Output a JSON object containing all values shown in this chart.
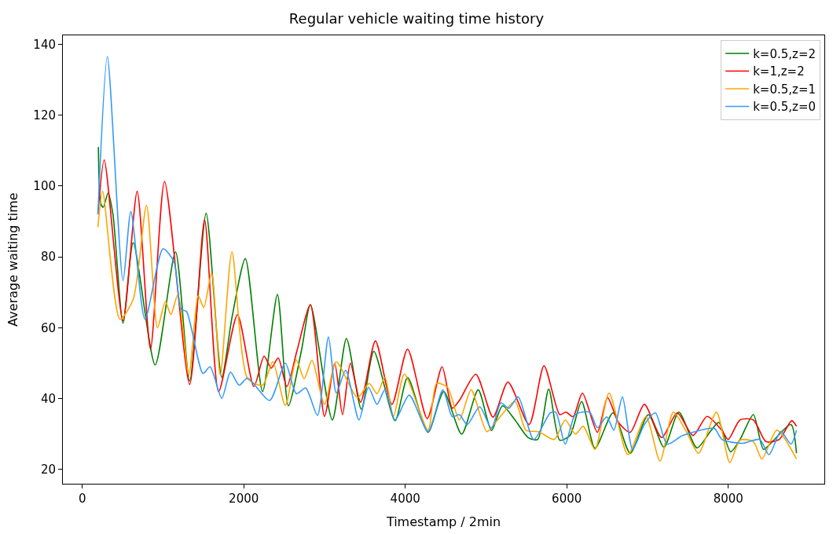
{
  "chart_data": {
    "type": "line",
    "title": "Regular vehicle waiting time history",
    "xlabel": "Timestamp / 2min",
    "ylabel": "Average waiting time",
    "xlim": [
      -240,
      9190
    ],
    "ylim": [
      16,
      142.5
    ],
    "xticks": [
      0,
      2000,
      4000,
      6000,
      8000
    ],
    "yticks": [
      20,
      40,
      60,
      80,
      100,
      120,
      140
    ],
    "legend": "top right",
    "line_style": "solid",
    "series": [
      {
        "name": "k=0.5,z=2",
        "color": "#008000",
        "x": [
          200,
          230,
          260,
          320,
          380,
          505,
          631,
          903,
          1155,
          1330,
          1534,
          1728,
          1855,
          2020,
          2233,
          2417,
          2553,
          2718,
          2825,
          3097,
          3272,
          3456,
          3611,
          3874,
          4029,
          4282,
          4476,
          4699,
          4903,
          5068,
          5204,
          5359,
          5524,
          5640,
          5777,
          5913,
          6039,
          6184,
          6350,
          6573,
          6786,
          7010,
          7204,
          7388,
          7612,
          7786,
          7883,
          8029,
          8146,
          8311,
          8437,
          8563,
          8777,
          8845
        ],
        "values": [
          111,
          95,
          94,
          98,
          92,
          61.3,
          84,
          49.5,
          81.4,
          45,
          92.3,
          46,
          63,
          79.5,
          42,
          69.4,
          38,
          54,
          66.5,
          34,
          57,
          37,
          53.4,
          33.8,
          46,
          30.5,
          42,
          30,
          42.5,
          31,
          38,
          34,
          29,
          28.5,
          42.7,
          28.3,
          29.6,
          39.2,
          26,
          36,
          24.6,
          35.5,
          26.3,
          36.2,
          26.1,
          31,
          33.3,
          25,
          28.5,
          35.5,
          25.7,
          28.3,
          32.7,
          24.6
        ]
      },
      {
        "name": "k=1,z=2",
        "color": "#ff0000",
        "x": [
          194,
          272,
          505,
          680,
          845,
          1019,
          1330,
          1515,
          1689,
          1922,
          2126,
          2252,
          2340,
          2427,
          2534,
          2660,
          2825,
          3000,
          3126,
          3223,
          3320,
          3447,
          3631,
          3835,
          4029,
          4272,
          4456,
          4583,
          4670,
          4874,
          5087,
          5272,
          5534,
          5718,
          5913,
          5990,
          6078,
          6194,
          6379,
          6505,
          6641,
          6786,
          6961,
          7175,
          7369,
          7563,
          7738,
          7922,
          8000,
          8146,
          8311,
          8466,
          8631,
          8786,
          8845
        ],
        "values": [
          92,
          107.4,
          62,
          98.5,
          54,
          101.3,
          44,
          90.4,
          42,
          63.7,
          43.4,
          52,
          48.6,
          51.5,
          43.4,
          53.6,
          66.5,
          35,
          50,
          35.5,
          50,
          39,
          56.3,
          38.4,
          54,
          34.4,
          49,
          37.3,
          39.5,
          46.9,
          34.8,
          44.7,
          32.7,
          49.3,
          35.5,
          36.2,
          34.9,
          41.6,
          30.5,
          40.3,
          33.3,
          30.5,
          38.4,
          29,
          36,
          29.6,
          35,
          31,
          28.5,
          34,
          34,
          27.9,
          28.5,
          33.8,
          32.2
        ]
      },
      {
        "name": "k=0.5,z=1",
        "color": "#ffa500",
        "x": [
          194,
          252,
          466,
          631,
          796,
          932,
          1029,
          1097,
          1184,
          1320,
          1437,
          1505,
          1602,
          1709,
          1854,
          2049,
          2233,
          2359,
          2515,
          2650,
          2748,
          2845,
          3000,
          3146,
          3408,
          3553,
          3650,
          3748,
          3854,
          3990,
          4282,
          4388,
          4524,
          4670,
          4816,
          5010,
          5136,
          5359,
          5495,
          5650,
          5845,
          5981,
          6107,
          6204,
          6350,
          6524,
          6757,
          6981,
          7155,
          7320,
          7485,
          7631,
          7854,
          8019,
          8146,
          8311,
          8417,
          8602,
          8845
        ],
        "values": [
          88.4,
          98.5,
          62.4,
          68,
          94.5,
          60,
          67.4,
          63.7,
          69.4,
          46.7,
          69,
          65.7,
          75.5,
          46.7,
          81.4,
          45.6,
          43.8,
          50.4,
          38.1,
          51,
          45.6,
          50.8,
          38.4,
          50.4,
          40.3,
          44.3,
          41.4,
          46,
          35,
          46.9,
          31.1,
          44.3,
          43.2,
          34,
          42.5,
          30.7,
          33.8,
          39.2,
          31.1,
          30.7,
          28.5,
          34,
          30,
          32.2,
          25.7,
          41.6,
          24.2,
          34.9,
          22.4,
          36.2,
          30.5,
          24.6,
          36.2,
          22,
          28.3,
          27.9,
          23,
          31.1,
          23
        ]
      },
      {
        "name": "k=0.5,z=0",
        "color": "#3399ff",
        "x": [
          194,
          311,
          505,
          602,
          777,
          1000,
          1136,
          1223,
          1291,
          1495,
          1583,
          1728,
          1835,
          1942,
          2049,
          2320,
          2515,
          2650,
          2767,
          2913,
          3049,
          3146,
          3262,
          3427,
          3544,
          3650,
          3748,
          3874,
          4049,
          4282,
          4466,
          4583,
          4670,
          4767,
          4922,
          5068,
          5184,
          5282,
          5398,
          5592,
          5796,
          5864,
          5981,
          6107,
          6282,
          6379,
          6495,
          6583,
          6689,
          6816,
          6961,
          7097,
          7243,
          7437,
          7825,
          7922,
          8175,
          8388,
          8505,
          8650,
          8777,
          8845
        ],
        "values": [
          92,
          136.5,
          73.3,
          92.8,
          62.4,
          82.3,
          78.6,
          65.2,
          64.6,
          47.1,
          49,
          40.1,
          47.5,
          43.8,
          45.8,
          39.5,
          50,
          41.4,
          43,
          35.3,
          57.4,
          41.6,
          48,
          34,
          43.2,
          38.4,
          42.5,
          34,
          41,
          30.7,
          42.5,
          34.9,
          35.5,
          32.7,
          37.7,
          31.6,
          38.8,
          37.3,
          40.5,
          28.5,
          36,
          36.2,
          27.2,
          35.5,
          36.2,
          31.8,
          34.9,
          31.1,
          40.5,
          25.7,
          32.7,
          36,
          27.2,
          29.6,
          31.6,
          28.5,
          27.4,
          28.5,
          24.2,
          30.7,
          27.2,
          31.1
        ]
      }
    ]
  }
}
